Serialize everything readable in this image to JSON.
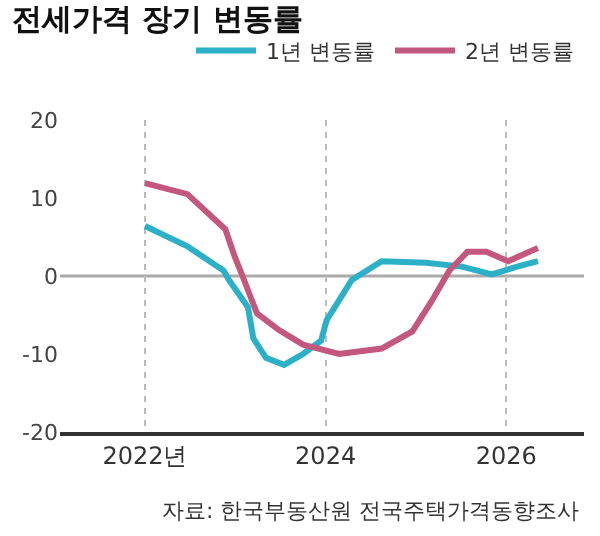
{
  "chart_data": {
    "type": "line",
    "title": "전세가격 장기 변동률",
    "series": [
      {
        "name": "1년 변동률",
        "color": "#2bb0c8",
        "x": [
          2022.0,
          2022.47,
          2022.87,
          2022.93,
          2023.14,
          2023.2,
          2023.34,
          2023.54,
          2023.75,
          2023.95,
          2024.01,
          2024.29,
          2024.62,
          2025.11,
          2025.51,
          2025.84,
          2026.12,
          2026.35
        ],
        "values": [
          6.4,
          3.8,
          0.7,
          -0.5,
          -4,
          -8,
          -10.5,
          -11.4,
          -10,
          -8.3,
          -5.7,
          -0.5,
          1.9,
          1.7,
          1.2,
          0.2,
          1.2,
          1.9
        ]
      },
      {
        "name": "2년 변동률",
        "color": "#c4577e",
        "x": [
          2022.0,
          2022.47,
          2022.89,
          2022.99,
          2023.08,
          2023.24,
          2023.48,
          2023.75,
          2024.15,
          2024.62,
          2024.96,
          2025.17,
          2025.37,
          2025.57,
          2025.78,
          2026.02,
          2026.35
        ],
        "values": [
          11.9,
          10.5,
          6,
          2.6,
          0,
          -4.8,
          -6.9,
          -8.8,
          -10,
          -9.3,
          -7.1,
          -3.3,
          0.7,
          3.1,
          3.1,
          1.9,
          3.6
        ]
      }
    ],
    "xlim": [
      2021.06,
      2026.86
    ],
    "xticks": [
      {
        "value": 2022,
        "label": "2022년"
      },
      2024,
      2026
    ],
    "ylim": [
      -20,
      20
    ],
    "yticks": [
      -20,
      -10,
      0,
      10,
      20
    ],
    "ref_lines": [
      {
        "axis": "y",
        "value": 0,
        "color": "#aaaaaa"
      }
    ],
    "grid": "x",
    "legend": "top right",
    "annotations": [
      "자료: 한국부동산원 전국주택가격동향조사"
    ]
  }
}
